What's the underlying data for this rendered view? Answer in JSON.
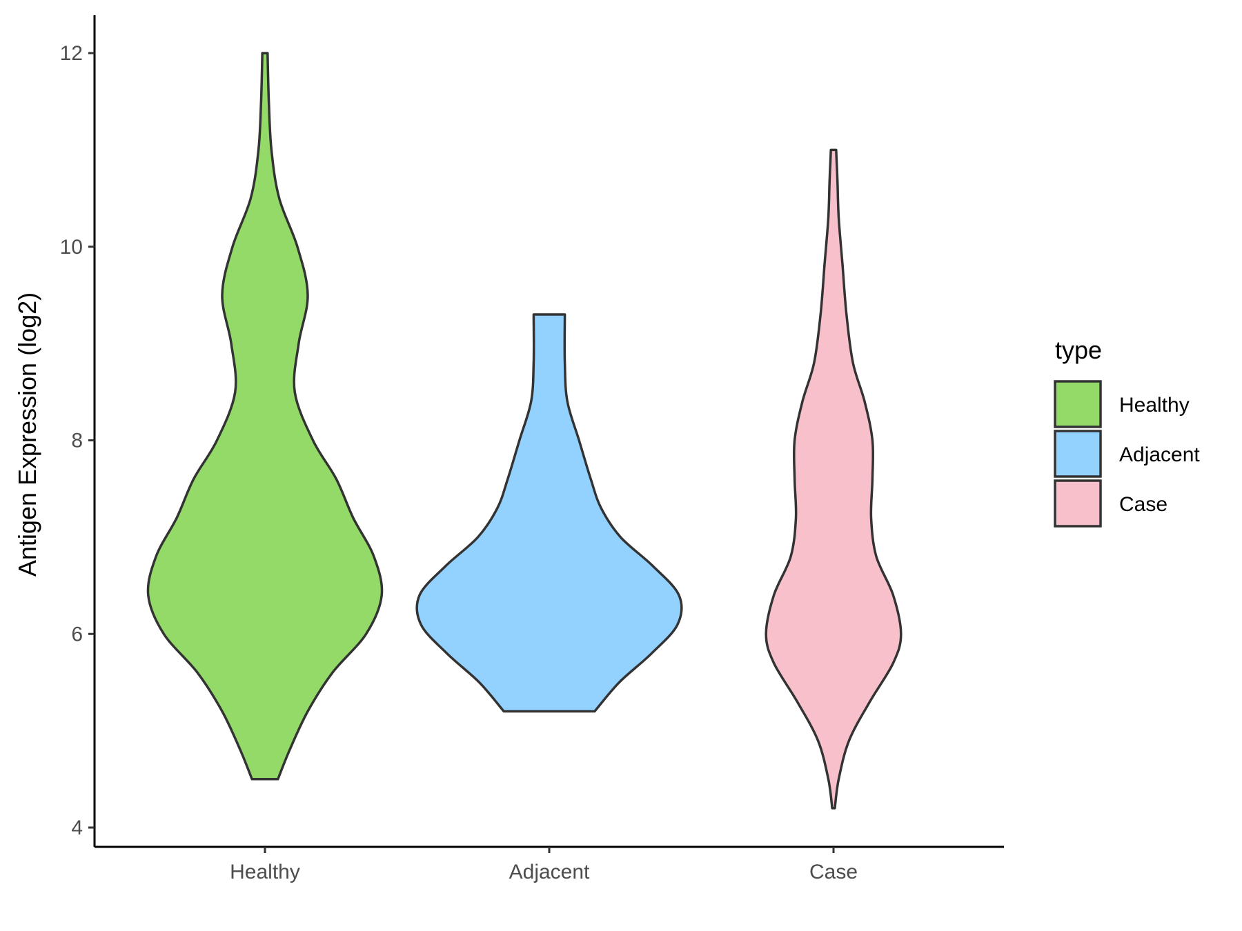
{
  "chart_data": {
    "type": "violin",
    "categories": [
      "Healthy",
      "Adjacent",
      "Case"
    ],
    "ylabel": "Antigen Expression (log2)",
    "xlabel": "",
    "ylim": [
      3.8,
      12.4
    ],
    "yticks": [
      "4",
      "6",
      "8",
      "10",
      "12"
    ],
    "grid": false,
    "legend": {
      "title": "type",
      "position": "right",
      "items": [
        "Healthy",
        "Adjacent",
        "Case"
      ]
    },
    "colors": {
      "Healthy": "#93DA69",
      "Adjacent": "#93D2FF",
      "Case": "#F7C0CB",
      "outline": "#333333"
    },
    "series": [
      {
        "category": "Healthy",
        "min": 4.5,
        "max": 12.0,
        "density": [
          [
            4.5,
            0.1
          ],
          [
            4.8,
            0.19
          ],
          [
            5.2,
            0.33
          ],
          [
            5.6,
            0.52
          ],
          [
            6.0,
            0.78
          ],
          [
            6.4,
            0.9
          ],
          [
            6.8,
            0.84
          ],
          [
            7.2,
            0.68
          ],
          [
            7.6,
            0.55
          ],
          [
            8.0,
            0.37
          ],
          [
            8.5,
            0.23
          ],
          [
            9.0,
            0.26
          ],
          [
            9.5,
            0.33
          ],
          [
            10.0,
            0.25
          ],
          [
            10.5,
            0.11
          ],
          [
            11.0,
            0.05
          ],
          [
            11.5,
            0.03
          ],
          [
            12.0,
            0.02
          ]
        ]
      },
      {
        "category": "Adjacent",
        "min": 5.2,
        "max": 9.3,
        "density": [
          [
            5.2,
            0.35
          ],
          [
            5.5,
            0.54
          ],
          [
            5.8,
            0.79
          ],
          [
            6.1,
            0.99
          ],
          [
            6.4,
            1.0
          ],
          [
            6.7,
            0.8
          ],
          [
            7.0,
            0.55
          ],
          [
            7.3,
            0.4
          ],
          [
            7.6,
            0.32
          ],
          [
            8.0,
            0.23
          ],
          [
            8.4,
            0.14
          ],
          [
            8.8,
            0.12
          ],
          [
            9.3,
            0.12
          ]
        ]
      },
      {
        "category": "Case",
        "min": 4.2,
        "max": 11.0,
        "density": [
          [
            4.2,
            0.01
          ],
          [
            4.5,
            0.04
          ],
          [
            4.9,
            0.12
          ],
          [
            5.3,
            0.28
          ],
          [
            5.7,
            0.46
          ],
          [
            6.0,
            0.52
          ],
          [
            6.4,
            0.46
          ],
          [
            6.8,
            0.33
          ],
          [
            7.2,
            0.29
          ],
          [
            7.6,
            0.3
          ],
          [
            8.0,
            0.3
          ],
          [
            8.4,
            0.24
          ],
          [
            8.8,
            0.15
          ],
          [
            9.3,
            0.1
          ],
          [
            9.8,
            0.07
          ],
          [
            10.3,
            0.04
          ],
          [
            10.7,
            0.03
          ],
          [
            11.0,
            0.02
          ]
        ]
      }
    ]
  }
}
